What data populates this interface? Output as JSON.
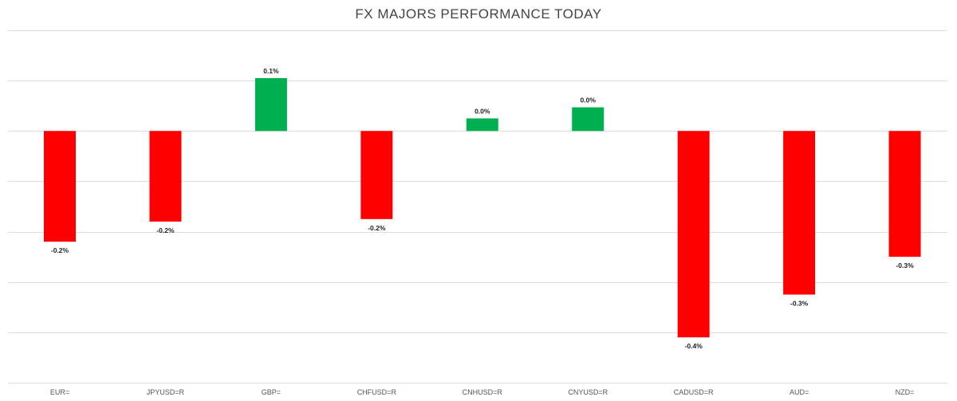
{
  "chart_data": {
    "type": "bar",
    "title": "FX MAJORS PERFORMANCE TODAY",
    "categories": [
      "EUR=",
      "JPYUSD=R",
      "GBP=",
      "CHFUSD=R",
      "CNHUSD=R",
      "CNYUSD=R",
      "CADUSD=R",
      "AUD=",
      "NZD="
    ],
    "values": [
      -0.22,
      -0.18,
      0.105,
      -0.175,
      0.025,
      0.047,
      -0.41,
      -0.325,
      -0.25
    ],
    "data_labels": [
      "-0.2%",
      "-0.2%",
      "0.1%",
      "-0.2%",
      "0.0%",
      "0.0%",
      "-0.4%",
      "-0.3%",
      "-0.3%"
    ],
    "ylim": [
      -0.5,
      0.2
    ],
    "grid": true,
    "legend": "none",
    "colors": {
      "positive": "#00b050",
      "negative": "#ff0000"
    }
  }
}
